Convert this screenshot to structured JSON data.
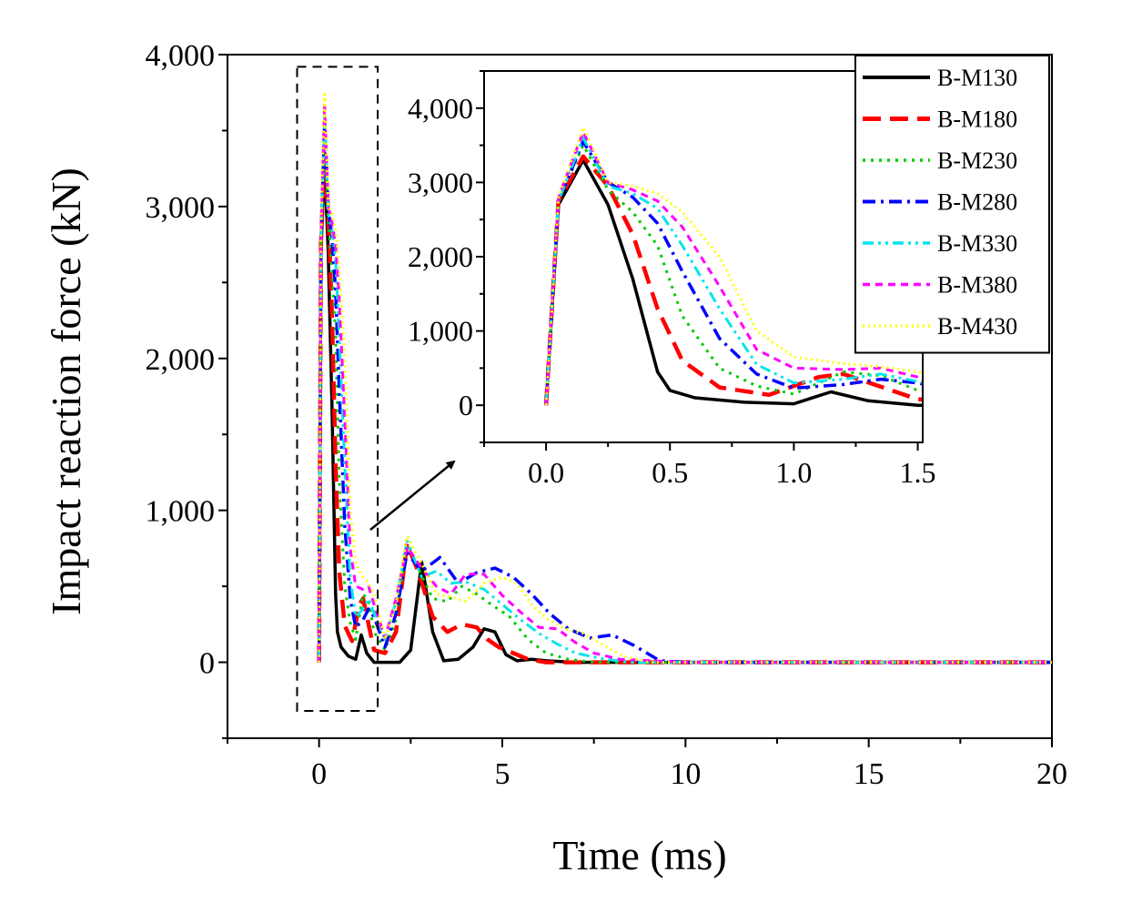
{
  "chart_data": [
    {
      "name": "main",
      "type": "line",
      "xlabel": "Time (ms)",
      "ylabel": "Impact reaction force (kN)",
      "xlim": [
        -2.5,
        20
      ],
      "ylim": [
        -500,
        4000
      ],
      "xticks": [
        0,
        5,
        10,
        15,
        20
      ],
      "xtick_labels": [
        "0",
        "5",
        "10",
        "15",
        "20"
      ],
      "yticks": [
        0,
        1000,
        2000,
        3000,
        4000
      ],
      "ytick_labels": [
        "0",
        "1,000",
        "2,000",
        "3,000",
        "4,000"
      ],
      "zoom_box": {
        "x": [
          -0.6,
          1.6
        ],
        "y": [
          -320,
          3920
        ]
      },
      "series": [
        {
          "name": "B-M130",
          "color": "#000000",
          "dash": "solid",
          "x": [
            0,
            0.05,
            0.15,
            0.25,
            0.35,
            0.45,
            0.5,
            0.6,
            0.8,
            1.0,
            1.15,
            1.3,
            1.5,
            1.8,
            2.2,
            2.5,
            2.8,
            3.1,
            3.4,
            3.8,
            4.2,
            4.5,
            4.8,
            5.1,
            5.4,
            5.8,
            6.2,
            7,
            8,
            10,
            20
          ],
          "y": [
            0,
            2700,
            3300,
            2700,
            1700,
            450,
            200,
            100,
            40,
            20,
            180,
            60,
            0,
            0,
            0,
            80,
            660,
            200,
            10,
            20,
            100,
            220,
            200,
            50,
            10,
            20,
            10,
            0,
            0,
            0,
            0
          ]
        },
        {
          "name": "B-M180",
          "color": "#ff0000",
          "dash": "long",
          "x": [
            0,
            0.05,
            0.15,
            0.25,
            0.35,
            0.45,
            0.55,
            0.7,
            0.9,
            1.1,
            1.2,
            1.35,
            1.5,
            1.8,
            2.1,
            2.4,
            2.7,
            3.1,
            3.5,
            3.9,
            4.3,
            4.6,
            4.9,
            5.3,
            5.7,
            6.2,
            7,
            8,
            10,
            20
          ],
          "y": [
            0,
            2750,
            3350,
            2950,
            2300,
            1300,
            600,
            240,
            140,
            380,
            420,
            250,
            80,
            60,
            200,
            780,
            600,
            300,
            200,
            250,
            230,
            150,
            100,
            60,
            20,
            0,
            0,
            0,
            0,
            0
          ]
        },
        {
          "name": "B-M230",
          "color": "#00cc00",
          "dash": "dot",
          "x": [
            0,
            0.05,
            0.15,
            0.25,
            0.35,
            0.45,
            0.55,
            0.7,
            0.85,
            1.0,
            1.2,
            1.35,
            1.5,
            1.8,
            2.1,
            2.4,
            2.7,
            3.1,
            3.5,
            3.9,
            4.3,
            4.7,
            5.2,
            5.7,
            6.2,
            6.8,
            7.5,
            8.5,
            10,
            20
          ],
          "y": [
            0,
            2750,
            3500,
            2900,
            2600,
            2150,
            1200,
            500,
            260,
            150,
            450,
            400,
            200,
            80,
            280,
            800,
            620,
            420,
            400,
            500,
            450,
            380,
            300,
            150,
            60,
            20,
            0,
            0,
            0,
            0
          ]
        },
        {
          "name": "B-M280",
          "color": "#0000ff",
          "dash": "dashdot",
          "x": [
            0,
            0.05,
            0.15,
            0.25,
            0.35,
            0.45,
            0.55,
            0.7,
            0.85,
            1.0,
            1.2,
            1.35,
            1.5,
            1.8,
            2.1,
            2.4,
            2.8,
            3.3,
            3.8,
            4.3,
            4.8,
            5.3,
            5.8,
            6.3,
            6.8,
            7.4,
            8,
            8.6,
            9.3,
            10,
            20
          ],
          "y": [
            0,
            2750,
            3550,
            3000,
            2800,
            2450,
            1800,
            900,
            420,
            230,
            280,
            350,
            300,
            100,
            320,
            720,
            600,
            690,
            520,
            590,
            620,
            560,
            450,
            320,
            220,
            160,
            180,
            110,
            10,
            0,
            0
          ]
        },
        {
          "name": "B-M330",
          "color": "#00e5ee",
          "dash": "dashdotdot",
          "x": [
            0,
            0.05,
            0.15,
            0.25,
            0.35,
            0.45,
            0.55,
            0.7,
            0.85,
            1.0,
            1.2,
            1.35,
            1.5,
            1.8,
            2.1,
            2.4,
            2.8,
            3.2,
            3.6,
            4.0,
            4.5,
            5.0,
            5.5,
            6.0,
            6.5,
            7.0,
            7.8,
            8.5,
            10,
            20
          ],
          "y": [
            0,
            2750,
            3600,
            2950,
            2850,
            2650,
            2150,
            1300,
            550,
            300,
            350,
            420,
            320,
            150,
            400,
            800,
            560,
            600,
            520,
            530,
            480,
            380,
            280,
            190,
            120,
            60,
            20,
            0,
            0,
            0
          ]
        },
        {
          "name": "B-M380",
          "color": "#ff00ff",
          "dash": "shortdash",
          "x": [
            0,
            0.05,
            0.15,
            0.25,
            0.35,
            0.45,
            0.55,
            0.7,
            0.85,
            1.0,
            1.2,
            1.35,
            1.5,
            1.8,
            2.1,
            2.4,
            2.8,
            3.2,
            3.6,
            4.0,
            4.5,
            5.0,
            5.5,
            6.0,
            6.5,
            7.0,
            7.5,
            8.2,
            10,
            20
          ],
          "y": [
            0,
            2800,
            3680,
            3000,
            2900,
            2750,
            2400,
            1600,
            750,
            500,
            480,
            500,
            380,
            160,
            420,
            760,
            620,
            500,
            450,
            580,
            580,
            440,
            330,
            230,
            220,
            130,
            60,
            20,
            0,
            0
          ]
        },
        {
          "name": "B-M430",
          "color": "#ffff00",
          "dash": "dotfine",
          "x": [
            0,
            0.05,
            0.15,
            0.25,
            0.35,
            0.45,
            0.55,
            0.7,
            0.85,
            1.0,
            1.2,
            1.35,
            1.5,
            1.8,
            2.1,
            2.4,
            2.8,
            3.2,
            3.6,
            4.0,
            4.5,
            5.0,
            5.4,
            5.8,
            6.2,
            6.7,
            7.2,
            7.7,
            8.3,
            9,
            10,
            20
          ],
          "y": [
            0,
            2800,
            3740,
            3000,
            2950,
            2850,
            2600,
            2000,
            1000,
            650,
            560,
            520,
            450,
            150,
            380,
            830,
            650,
            450,
            430,
            400,
            520,
            560,
            520,
            380,
            290,
            220,
            190,
            120,
            40,
            0,
            0,
            0
          ]
        }
      ]
    },
    {
      "name": "inset",
      "type": "line",
      "xlim": [
        -0.25,
        1.52
      ],
      "ylim": [
        -500,
        4500
      ],
      "xticks": [
        0,
        0.5,
        1.0,
        1.5
      ],
      "xtick_labels": [
        "0.0",
        "0.5",
        "1.0",
        "1.5"
      ],
      "yticks": [
        0,
        1000,
        2000,
        3000,
        4000
      ],
      "ytick_labels": [
        "0",
        "1,000",
        "2,000",
        "3,000",
        "4,000"
      ],
      "x_range_shown": [
        0,
        1.52
      ],
      "note": "Inset zooms into 0–1.5 ms of the same series"
    }
  ],
  "legend": {
    "placement": "top-right",
    "entries": [
      "B-M130",
      "B-M180",
      "B-M230",
      "B-M280",
      "B-M330",
      "B-M380",
      "B-M430"
    ]
  }
}
